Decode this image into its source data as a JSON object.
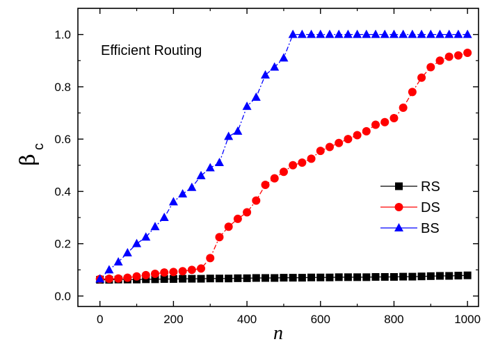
{
  "chart_data": {
    "type": "line",
    "annotation": "Efficient Routing",
    "xlabel": "n",
    "ylabel": "β",
    "ylabel_sub": "c",
    "xlim": [
      -60,
      1030
    ],
    "ylim": [
      -0.04,
      1.1
    ],
    "xticks": [
      0,
      200,
      400,
      600,
      800,
      1000
    ],
    "yticks": [
      0.0,
      0.2,
      0.4,
      0.6,
      0.8,
      1.0
    ],
    "ytick_labels": [
      "0.0",
      "0.2",
      "0.4",
      "0.6",
      "0.8",
      "1.0"
    ],
    "legend_position": "center-right",
    "series": [
      {
        "name": "RS",
        "color": "#000000",
        "marker": "square",
        "line_style": "solid",
        "x": [
          0,
          25,
          50,
          75,
          100,
          125,
          150,
          175,
          200,
          225,
          250,
          275,
          300,
          325,
          350,
          375,
          400,
          425,
          450,
          475,
          500,
          525,
          550,
          575,
          600,
          625,
          650,
          675,
          700,
          725,
          750,
          775,
          800,
          825,
          850,
          875,
          900,
          925,
          950,
          975,
          1000
        ],
        "y": [
          0.062,
          0.062,
          0.063,
          0.063,
          0.063,
          0.064,
          0.064,
          0.065,
          0.065,
          0.066,
          0.066,
          0.066,
          0.067,
          0.067,
          0.067,
          0.068,
          0.068,
          0.069,
          0.069,
          0.069,
          0.07,
          0.07,
          0.07,
          0.071,
          0.071,
          0.071,
          0.072,
          0.072,
          0.072,
          0.072,
          0.073,
          0.073,
          0.073,
          0.074,
          0.074,
          0.075,
          0.076,
          0.077,
          0.077,
          0.078,
          0.079
        ]
      },
      {
        "name": "DS",
        "color": "#ff0000",
        "marker": "circle",
        "line_style": "dashdot",
        "x": [
          0,
          25,
          50,
          75,
          100,
          125,
          150,
          175,
          200,
          225,
          250,
          275,
          300,
          325,
          350,
          375,
          400,
          425,
          450,
          475,
          500,
          525,
          550,
          575,
          600,
          625,
          650,
          675,
          700,
          725,
          750,
          775,
          800,
          825,
          850,
          875,
          900,
          925,
          950,
          975,
          1000
        ],
        "y": [
          0.065,
          0.066,
          0.067,
          0.07,
          0.075,
          0.08,
          0.085,
          0.09,
          0.092,
          0.095,
          0.1,
          0.105,
          0.145,
          0.225,
          0.265,
          0.295,
          0.32,
          0.365,
          0.425,
          0.45,
          0.475,
          0.5,
          0.51,
          0.525,
          0.555,
          0.57,
          0.585,
          0.6,
          0.615,
          0.63,
          0.655,
          0.665,
          0.68,
          0.72,
          0.78,
          0.835,
          0.875,
          0.9,
          0.915,
          0.92,
          0.93
        ]
      },
      {
        "name": "BS",
        "color": "#0000ff",
        "marker": "triangle",
        "line_style": "dashdot",
        "x": [
          0,
          25,
          50,
          75,
          100,
          125,
          150,
          175,
          200,
          225,
          250,
          275,
          300,
          325,
          350,
          375,
          400,
          425,
          450,
          475,
          500,
          525,
          550,
          575,
          600,
          625,
          650,
          675,
          700,
          725,
          750,
          775,
          800,
          825,
          850,
          875,
          900,
          925,
          950,
          975,
          1000
        ],
        "y": [
          0.065,
          0.1,
          0.13,
          0.165,
          0.2,
          0.225,
          0.265,
          0.3,
          0.36,
          0.39,
          0.415,
          0.46,
          0.49,
          0.51,
          0.61,
          0.63,
          0.725,
          0.76,
          0.845,
          0.875,
          0.91,
          1.0,
          1.0,
          1.0,
          1.0,
          1.0,
          1.0,
          1.0,
          1.0,
          1.0,
          1.0,
          1.0,
          1.0,
          1.0,
          1.0,
          1.0,
          1.0,
          1.0,
          1.0,
          1.0,
          1.0
        ]
      }
    ]
  }
}
